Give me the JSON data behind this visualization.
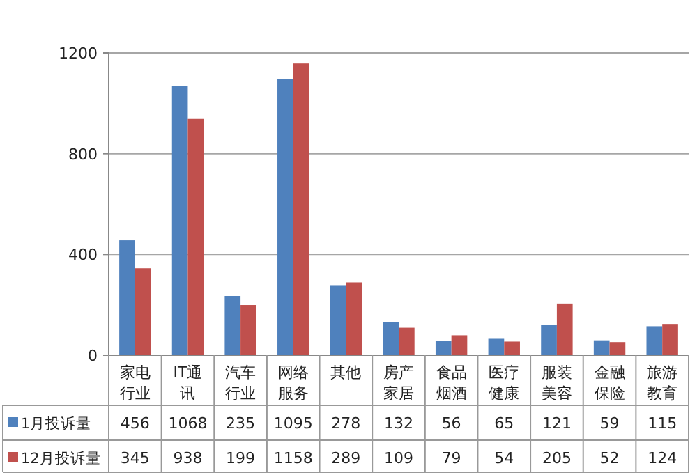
{
  "chart_data": {
    "type": "bar",
    "categories": [
      "家电行业",
      "IT通讯",
      "汽车行业",
      "网络服务",
      "其他",
      "房产家居",
      "食品烟酒",
      "医疗健康",
      "服装美容",
      "金融保险",
      "旅游教育"
    ],
    "series": [
      {
        "name": "1月投诉量",
        "color": "#4f81bd",
        "values": [
          456,
          1068,
          235,
          1095,
          278,
          132,
          56,
          65,
          121,
          59,
          115
        ]
      },
      {
        "name": "12月投诉量",
        "color": "#c0504d",
        "values": [
          345,
          938,
          199,
          1158,
          289,
          109,
          79,
          54,
          205,
          52,
          124
        ]
      }
    ],
    "ylim": [
      0,
      1200
    ],
    "yticks": [
      0,
      400,
      800,
      1200
    ],
    "grid": "y",
    "data_labels": true,
    "legend": "bottom left"
  }
}
